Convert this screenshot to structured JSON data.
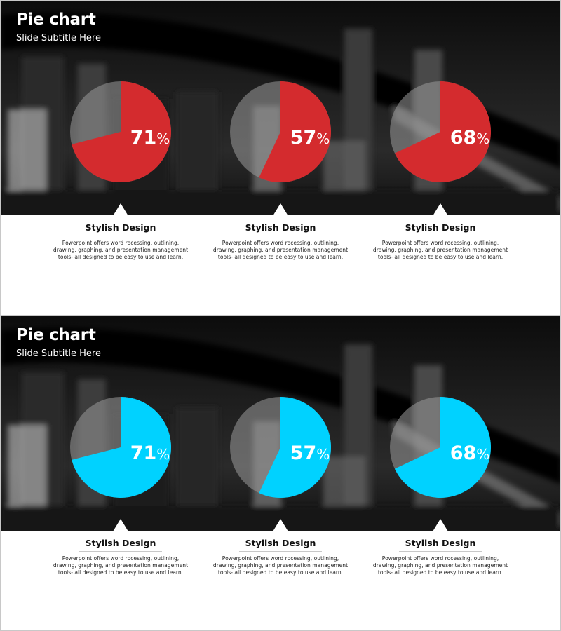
{
  "slides": [
    {
      "title": "Pie chart",
      "subtitle": "Slide Subtitle Here",
      "accent": "#d42b2e",
      "items": [
        {
          "value": "71",
          "unit": "%",
          "heading": "Stylish Design",
          "body": "Powerpoint offers word rocessing, outlining, drawing, graphing, and presentation management tools- all designed to be easy to use and learn."
        },
        {
          "value": "57",
          "unit": "%",
          "heading": "Stylish Design",
          "body": "Powerpoint offers word rocessing, outlining, drawing, graphing, and presentation management tools- all designed to be easy to use and learn."
        },
        {
          "value": "68",
          "unit": "%",
          "heading": "Stylish Design",
          "body": "Powerpoint offers word rocessing, outlining, drawing, graphing, and presentation management tools- all designed to be easy to use and learn."
        }
      ]
    },
    {
      "title": "Pie chart",
      "subtitle": "Slide Subtitle Here",
      "accent": "#00d2ff",
      "items": [
        {
          "value": "71",
          "unit": "%",
          "heading": "Stylish Design",
          "body": "Powerpoint offers word rocessing, outlining, drawing, graphing, and presentation management tools- all designed to be easy to use and learn."
        },
        {
          "value": "57",
          "unit": "%",
          "heading": "Stylish Design",
          "body": "Powerpoint offers word rocessing, outlining, drawing, graphing, and presentation management tools- all designed to be easy to use and learn."
        },
        {
          "value": "68",
          "unit": "%",
          "heading": "Stylish Design",
          "body": "Powerpoint offers word rocessing, outlining, drawing, graphing, and presentation management tools- all designed to be easy to use and learn."
        }
      ]
    }
  ],
  "chart_data": [
    {
      "type": "pie",
      "title": "Pie chart",
      "subtitle": "Slide Subtitle Here",
      "categories": [
        "Stylish Design",
        "Stylish Design",
        "Stylish Design"
      ],
      "values": [
        71,
        57,
        68
      ],
      "unit": "%",
      "colors": {
        "highlight": "#d42b2e",
        "remainder": "#808080"
      }
    },
    {
      "type": "pie",
      "title": "Pie chart",
      "subtitle": "Slide Subtitle Here",
      "categories": [
        "Stylish Design",
        "Stylish Design",
        "Stylish Design"
      ],
      "values": [
        71,
        57,
        68
      ],
      "unit": "%",
      "colors": {
        "highlight": "#00d2ff",
        "remainder": "#808080"
      }
    }
  ]
}
